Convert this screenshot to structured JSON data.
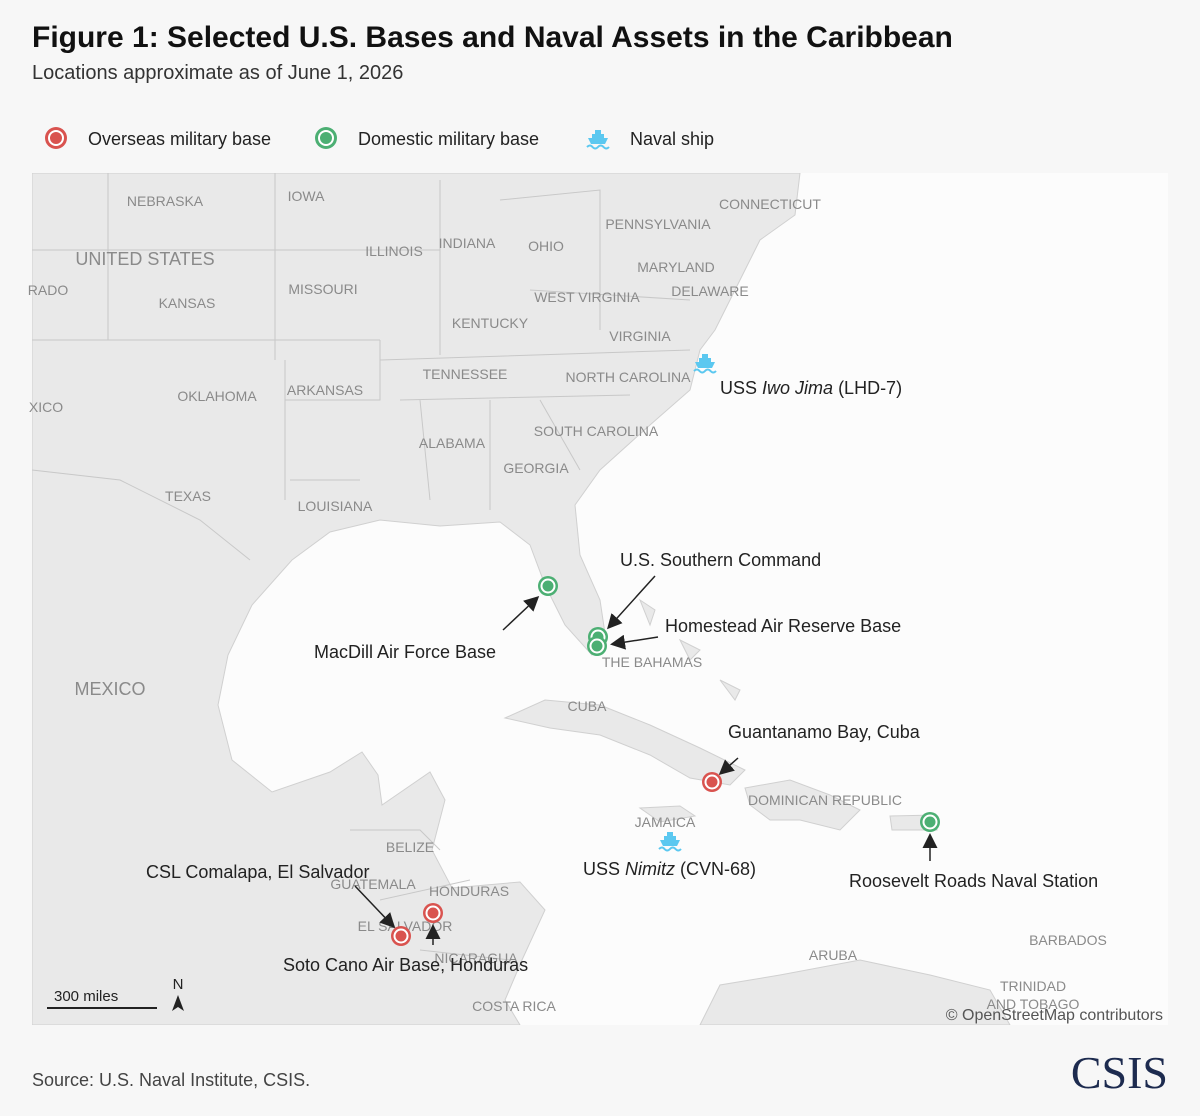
{
  "header": {
    "title": "Figure 1: Selected U.S. Bases and Naval Assets in the Caribbean",
    "subtitle": "Locations approximate as of June 1, 2026"
  },
  "legend": [
    "Overseas military base",
    "Domestic military base",
    "Naval ship"
  ],
  "place_labels": [
    "NEBRASKA",
    "IOWA",
    "CONNECTICUT",
    "PENNSYLVANIA",
    "ILLINOIS",
    "INDIANA",
    "OHIO",
    "UNITED STATES",
    "MARYLAND",
    "DELAWARE",
    "RADO",
    "KANSAS",
    "MISSOURI",
    "WEST VIRGINIA",
    "KENTUCKY",
    "VIRGINIA",
    "NORTH CAROLINA",
    "TENNESSEE",
    "XICO",
    "OKLAHOMA",
    "ARKANSAS",
    "SOUTH CAROLINA",
    "ALABAMA",
    "GEORGIA",
    "TEXAS",
    "LOUISIANA",
    "THE BAHAMAS",
    "MEXICO",
    "CUBA",
    "DOMINICAN REPUBLIC",
    "JAMAICA",
    "BELIZE",
    "GUATEMALA",
    "HONDURAS",
    "EL SALVADOR",
    "NICARAGUA",
    "BARBADOS",
    "ARUBA",
    "TRINIDAD",
    "AND TOBAGO",
    "COSTA RICA"
  ],
  "overseas_bases": [
    "Guantanamo Bay, Cuba",
    "CSL Comalapa, El Salvador",
    "Soto Cano Air Base, Honduras"
  ],
  "domestic_bases": [
    "U.S. Southern Command",
    "Homestead Air Reserve Base",
    "MacDill Air Force Base",
    "Roosevelt Roads Naval Station"
  ],
  "naval_ships": [
    {
      "prefix": "USS",
      "name": "Iwo Jima",
      "hull": "(LHD-7)"
    },
    {
      "prefix": "USS",
      "name": "Nimitz",
      "hull": "(CVN-68)"
    }
  ],
  "scale_bar": "300 miles",
  "north": "N",
  "attribution": "© OpenStreetMap contributors",
  "source": "Source: U.S. Naval Institute, CSIS.",
  "logo": "CSIS"
}
